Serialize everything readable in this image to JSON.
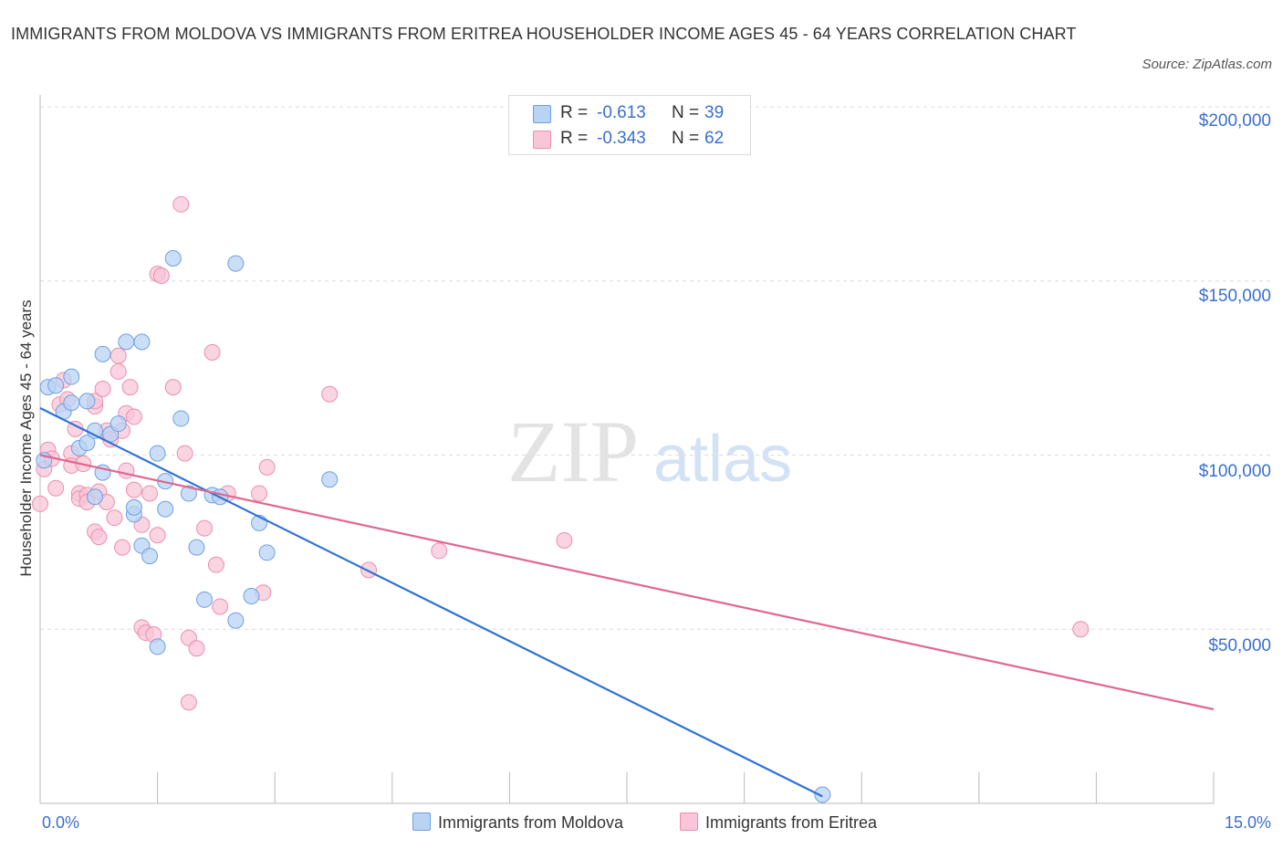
{
  "title": "IMMIGRANTS FROM MOLDOVA VS IMMIGRANTS FROM ERITREA HOUSEHOLDER INCOME AGES 45 - 64 YEARS CORRELATION CHART",
  "source": "Source: ZipAtlas.com",
  "watermark": {
    "zip": "ZIP",
    "atlas": "atlas"
  },
  "legend": {
    "moldova": {
      "r_label": "R =",
      "r_value": "-0.613",
      "n_label": "N =",
      "n_value": "39"
    },
    "eritrea": {
      "r_label": "R =",
      "r_value": "-0.343",
      "n_label": "N =",
      "n_value": "62"
    }
  },
  "colors": {
    "moldova_fill": "#b9d3f5",
    "moldova_stroke": "#6fa0e0",
    "moldova_line": "#2f72d6",
    "eritrea_fill": "#f8c6d6",
    "eritrea_stroke": "#ea8fae",
    "eritrea_line": "#e0678f",
    "grid": "#dcdcdc",
    "tick_text": "#3a6fcf"
  },
  "chart_data": {
    "type": "scatter",
    "title": "IMMIGRANTS FROM MOLDOVA VS IMMIGRANTS FROM ERITREA HOUSEHOLDER INCOME AGES 45 - 64 YEARS CORRELATION CHART",
    "xlabel": "",
    "ylabel": "Householder Income Ages 45 - 64 years",
    "xlim": [
      0,
      15
    ],
    "ylim": [
      0,
      200000
    ],
    "x_tick_labels": [
      "0.0%",
      "15.0%"
    ],
    "y_ticks": [
      50000,
      100000,
      150000,
      200000
    ],
    "y_tick_labels": [
      "$50,000",
      "$100,000",
      "$150,000",
      "$200,000"
    ],
    "grid": true,
    "legend_position": "top-center",
    "series": [
      {
        "name": "Immigrants from Moldova",
        "trend": {
          "x": [
            0.0,
            10.0
          ],
          "y": [
            113500,
            2000
          ]
        },
        "points": [
          [
            0.1,
            119500
          ],
          [
            0.3,
            112500
          ],
          [
            0.4,
            115000
          ],
          [
            0.4,
            122500
          ],
          [
            0.5,
            102000
          ],
          [
            0.6,
            115500
          ],
          [
            0.6,
            103500
          ],
          [
            0.7,
            107000
          ],
          [
            0.7,
            88000
          ],
          [
            0.8,
            95000
          ],
          [
            0.8,
            129000
          ],
          [
            0.9,
            106000
          ],
          [
            1.0,
            109000
          ],
          [
            1.1,
            132500
          ],
          [
            1.2,
            83000
          ],
          [
            1.2,
            85000
          ],
          [
            1.3,
            74000
          ],
          [
            1.3,
            132500
          ],
          [
            1.4,
            71000
          ],
          [
            1.5,
            45000
          ],
          [
            1.5,
            100500
          ],
          [
            1.6,
            92500
          ],
          [
            1.6,
            84500
          ],
          [
            1.7,
            156500
          ],
          [
            1.8,
            110500
          ],
          [
            1.9,
            89000
          ],
          [
            2.0,
            73500
          ],
          [
            2.1,
            58500
          ],
          [
            2.2,
            88500
          ],
          [
            2.3,
            88000
          ],
          [
            2.5,
            155000
          ],
          [
            2.5,
            52500
          ],
          [
            2.7,
            59500
          ],
          [
            2.8,
            80500
          ],
          [
            2.9,
            72000
          ],
          [
            3.7,
            93000
          ],
          [
            0.05,
            98500
          ],
          [
            0.2,
            120000
          ],
          [
            10.0,
            2500
          ]
        ]
      },
      {
        "name": "Immigrants from Eritrea",
        "trend": {
          "x": [
            0.0,
            15.0
          ],
          "y": [
            100000,
            27000
          ]
        },
        "points": [
          [
            0.0,
            86000
          ],
          [
            0.05,
            96000
          ],
          [
            0.1,
            101500
          ],
          [
            0.15,
            99000
          ],
          [
            0.2,
            90500
          ],
          [
            0.25,
            114500
          ],
          [
            0.3,
            121500
          ],
          [
            0.35,
            116000
          ],
          [
            0.4,
            100500
          ],
          [
            0.4,
            97000
          ],
          [
            0.45,
            107500
          ],
          [
            0.5,
            89000
          ],
          [
            0.5,
            87500
          ],
          [
            0.55,
            97500
          ],
          [
            0.6,
            88500
          ],
          [
            0.6,
            86500
          ],
          [
            0.7,
            114000
          ],
          [
            0.7,
            115500
          ],
          [
            0.75,
            89500
          ],
          [
            0.7,
            78000
          ],
          [
            0.75,
            76500
          ],
          [
            0.8,
            119000
          ],
          [
            0.85,
            107000
          ],
          [
            0.85,
            86500
          ],
          [
            0.9,
            104500
          ],
          [
            0.95,
            82000
          ],
          [
            1.0,
            128500
          ],
          [
            1.0,
            124000
          ],
          [
            1.05,
            73500
          ],
          [
            1.05,
            107000
          ],
          [
            1.1,
            112000
          ],
          [
            1.1,
            95500
          ],
          [
            1.15,
            119500
          ],
          [
            1.2,
            111000
          ],
          [
            1.2,
            90000
          ],
          [
            1.3,
            80000
          ],
          [
            1.3,
            50500
          ],
          [
            1.35,
            49000
          ],
          [
            1.4,
            89000
          ],
          [
            1.45,
            48500
          ],
          [
            1.5,
            77000
          ],
          [
            1.5,
            152000
          ],
          [
            1.55,
            151500
          ],
          [
            1.7,
            119500
          ],
          [
            1.8,
            172000
          ],
          [
            1.85,
            100500
          ],
          [
            1.9,
            47500
          ],
          [
            1.9,
            29000
          ],
          [
            2.0,
            44500
          ],
          [
            2.1,
            79000
          ],
          [
            2.2,
            129500
          ],
          [
            2.25,
            68500
          ],
          [
            2.3,
            56500
          ],
          [
            2.4,
            89000
          ],
          [
            2.8,
            89000
          ],
          [
            2.85,
            60500
          ],
          [
            2.9,
            96500
          ],
          [
            3.7,
            117500
          ],
          [
            4.2,
            67000
          ],
          [
            5.1,
            72500
          ],
          [
            6.7,
            75500
          ],
          [
            13.3,
            50000
          ]
        ]
      }
    ]
  },
  "x_axis": {
    "left_label": "0.0%",
    "right_label": "15.0%"
  },
  "y_axis": {
    "label": "Householder Income Ages 45 - 64 years",
    "tick_labels": [
      "$200,000",
      "$150,000",
      "$100,000",
      "$50,000"
    ]
  },
  "bottom_legend": {
    "moldova": "Immigrants from Moldova",
    "eritrea": "Immigrants from Eritrea"
  }
}
